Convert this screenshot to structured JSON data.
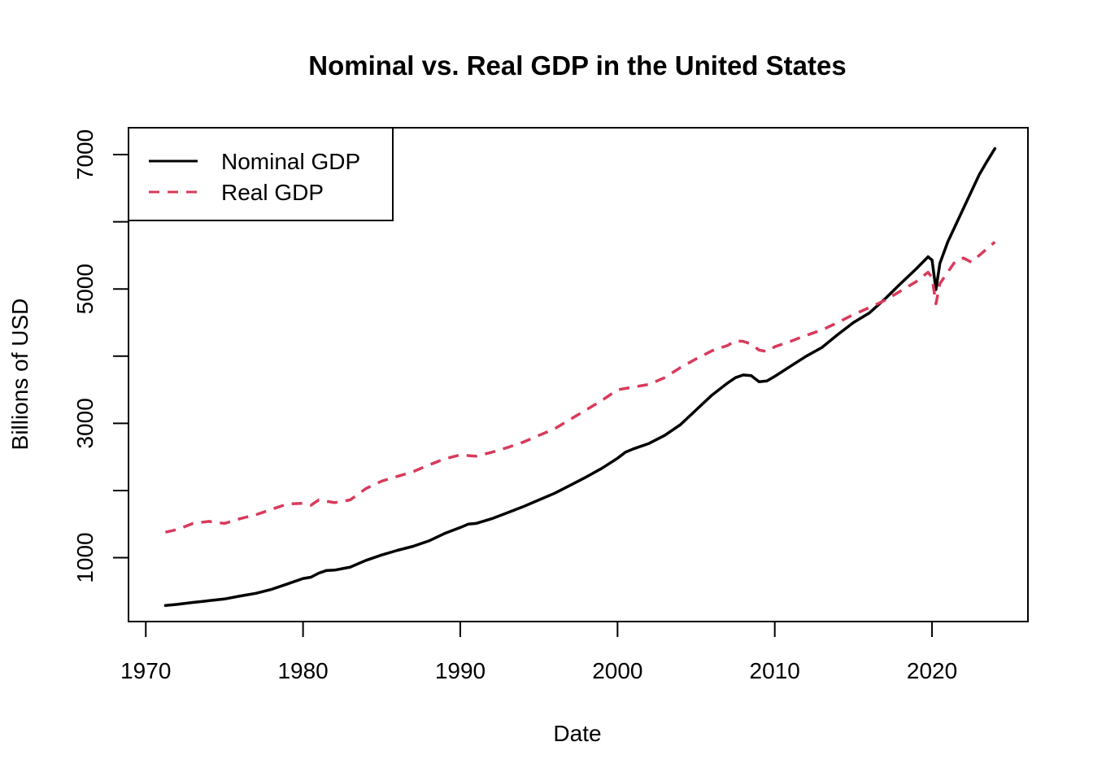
{
  "chart_data": {
    "type": "line",
    "title": "Nominal vs. Real GDP in the United States",
    "xlabel": "Date",
    "ylabel": "Billions of USD",
    "xlim": [
      1968.9,
      2026.1
    ],
    "ylim": [
      50,
      7400
    ],
    "x_ticks": [
      1970,
      1980,
      1990,
      2000,
      2010,
      2020
    ],
    "x_tick_labels": [
      "1970",
      "1980",
      "1990",
      "2000",
      "2010",
      "2020"
    ],
    "y_ticks": [
      1000,
      2000,
      3000,
      4000,
      5000,
      6000,
      7000
    ],
    "y_tick_labels": [
      "1000",
      "",
      "3000",
      "",
      "5000",
      "",
      "7000"
    ],
    "grid": false,
    "legend_position": "top-left",
    "series": [
      {
        "name": "Nominal GDP",
        "color": "#000000",
        "dash": "solid",
        "points": [
          [
            1971.25,
            290
          ],
          [
            1972,
            305
          ],
          [
            1973,
            335
          ],
          [
            1974,
            360
          ],
          [
            1975,
            385
          ],
          [
            1976,
            430
          ],
          [
            1977,
            470
          ],
          [
            1978,
            530
          ],
          [
            1979,
            610
          ],
          [
            1980,
            690
          ],
          [
            1980.5,
            710
          ],
          [
            1981,
            770
          ],
          [
            1981.5,
            810
          ],
          [
            1982,
            815
          ],
          [
            1983,
            860
          ],
          [
            1984,
            960
          ],
          [
            1985,
            1040
          ],
          [
            1986,
            1110
          ],
          [
            1987,
            1170
          ],
          [
            1988,
            1250
          ],
          [
            1989,
            1360
          ],
          [
            1990,
            1450
          ],
          [
            1990.5,
            1500
          ],
          [
            1991,
            1510
          ],
          [
            1992,
            1580
          ],
          [
            1993,
            1670
          ],
          [
            1994,
            1760
          ],
          [
            1995,
            1860
          ],
          [
            1996,
            1960
          ],
          [
            1997,
            2080
          ],
          [
            1998,
            2200
          ],
          [
            1999,
            2330
          ],
          [
            2000,
            2480
          ],
          [
            2000.5,
            2570
          ],
          [
            2001,
            2620
          ],
          [
            2002,
            2700
          ],
          [
            2003,
            2820
          ],
          [
            2004,
            2980
          ],
          [
            2005,
            3200
          ],
          [
            2006,
            3420
          ],
          [
            2007,
            3600
          ],
          [
            2007.5,
            3680
          ],
          [
            2008,
            3720
          ],
          [
            2008.5,
            3710
          ],
          [
            2009,
            3620
          ],
          [
            2009.5,
            3630
          ],
          [
            2010,
            3700
          ],
          [
            2011,
            3850
          ],
          [
            2012,
            4000
          ],
          [
            2013,
            4130
          ],
          [
            2014,
            4320
          ],
          [
            2015,
            4500
          ],
          [
            2016,
            4640
          ],
          [
            2017,
            4850
          ],
          [
            2018,
            5080
          ],
          [
            2019,
            5300
          ],
          [
            2019.75,
            5480
          ],
          [
            2020,
            5430
          ],
          [
            2020.25,
            4990
          ],
          [
            2020.5,
            5380
          ],
          [
            2021,
            5700
          ],
          [
            2022,
            6200
          ],
          [
            2023,
            6700
          ],
          [
            2023.5,
            6900
          ],
          [
            2024,
            7090
          ]
        ]
      },
      {
        "name": "Real GDP",
        "color": "#d83a5a",
        "dash": "dashed",
        "points": [
          [
            1971.25,
            1380
          ],
          [
            1972,
            1420
          ],
          [
            1973,
            1510
          ],
          [
            1974,
            1540
          ],
          [
            1975,
            1510
          ],
          [
            1976,
            1580
          ],
          [
            1977,
            1640
          ],
          [
            1978,
            1720
          ],
          [
            1979,
            1800
          ],
          [
            1980,
            1810
          ],
          [
            1980.5,
            1780
          ],
          [
            1981,
            1860
          ],
          [
            1982,
            1820
          ],
          [
            1983,
            1860
          ],
          [
            1984,
            2030
          ],
          [
            1985,
            2140
          ],
          [
            1986,
            2210
          ],
          [
            1987,
            2280
          ],
          [
            1988,
            2380
          ],
          [
            1989,
            2470
          ],
          [
            1990,
            2530
          ],
          [
            1991,
            2510
          ],
          [
            1992,
            2570
          ],
          [
            1993,
            2640
          ],
          [
            1994,
            2720
          ],
          [
            1995,
            2820
          ],
          [
            1996,
            2920
          ],
          [
            1997,
            3060
          ],
          [
            1998,
            3200
          ],
          [
            1999,
            3340
          ],
          [
            2000,
            3500
          ],
          [
            2001,
            3540
          ],
          [
            2002,
            3580
          ],
          [
            2003,
            3680
          ],
          [
            2004,
            3830
          ],
          [
            2005,
            3960
          ],
          [
            2006,
            4080
          ],
          [
            2007,
            4160
          ],
          [
            2007.5,
            4230
          ],
          [
            2008,
            4220
          ],
          [
            2008.5,
            4180
          ],
          [
            2009,
            4090
          ],
          [
            2009.5,
            4070
          ],
          [
            2010,
            4140
          ],
          [
            2011,
            4220
          ],
          [
            2012,
            4310
          ],
          [
            2013,
            4390
          ],
          [
            2014,
            4500
          ],
          [
            2015,
            4620
          ],
          [
            2016,
            4720
          ],
          [
            2017,
            4830
          ],
          [
            2018,
            4970
          ],
          [
            2019,
            5110
          ],
          [
            2019.75,
            5250
          ],
          [
            2020,
            5170
          ],
          [
            2020.25,
            4780
          ],
          [
            2020.5,
            5080
          ],
          [
            2021,
            5250
          ],
          [
            2021.5,
            5420
          ],
          [
            2022,
            5460
          ],
          [
            2022.5,
            5400
          ],
          [
            2023,
            5500
          ],
          [
            2023.5,
            5600
          ],
          [
            2024,
            5700
          ]
        ]
      }
    ]
  }
}
